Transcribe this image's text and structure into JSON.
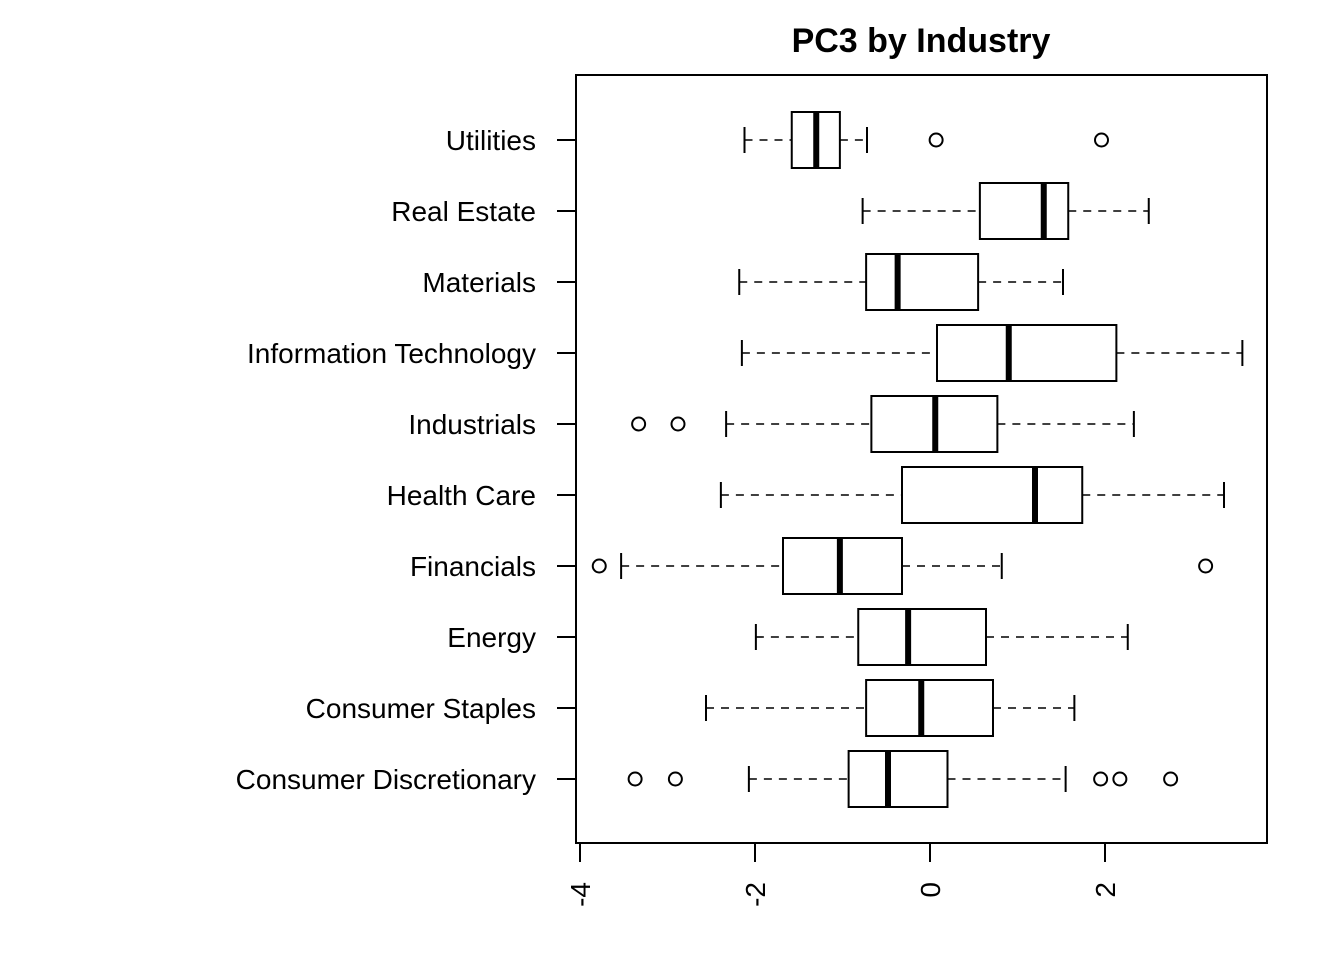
{
  "chart_data": {
    "type": "boxplot",
    "orientation": "horizontal",
    "title": "PC3 by Industry",
    "xlabel": "",
    "ylabel": "",
    "xlim": [
      -4.0,
      3.9
    ],
    "x_ticks": [
      -4,
      -2,
      0,
      2
    ],
    "x_tick_labels": [
      "-4",
      "-2",
      "0",
      "2"
    ],
    "grid": false,
    "categories": [
      "Consumer Discretionary",
      "Consumer Staples",
      "Energy",
      "Financials",
      "Health Care",
      "Industrials",
      "Information Technology",
      "Materials",
      "Real Estate",
      "Utilities"
    ],
    "boxes": [
      {
        "category": "Consumer Discretionary",
        "whisker_low": -2.07,
        "q1": -0.93,
        "median": -0.48,
        "q3": 0.2,
        "whisker_high": 1.55,
        "outliers": [
          -3.37,
          -2.91,
          1.95,
          2.17,
          2.75
        ]
      },
      {
        "category": "Consumer Staples",
        "whisker_low": -2.56,
        "q1": -0.73,
        "median": -0.1,
        "q3": 0.72,
        "whisker_high": 1.65,
        "outliers": []
      },
      {
        "category": "Energy",
        "whisker_low": -1.99,
        "q1": -0.82,
        "median": -0.25,
        "q3": 0.64,
        "whisker_high": 2.26,
        "outliers": []
      },
      {
        "category": "Financials",
        "whisker_low": -3.53,
        "q1": -1.68,
        "median": -1.03,
        "q3": -0.32,
        "whisker_high": 0.82,
        "outliers": [
          -3.78,
          3.15
        ]
      },
      {
        "category": "Health Care",
        "whisker_low": -2.39,
        "q1": -0.32,
        "median": 1.2,
        "q3": 1.74,
        "whisker_high": 3.36,
        "outliers": []
      },
      {
        "category": "Industrials",
        "whisker_low": -2.33,
        "q1": -0.67,
        "median": 0.06,
        "q3": 0.77,
        "whisker_high": 2.33,
        "outliers": [
          -3.33,
          -2.88
        ]
      },
      {
        "category": "Information Technology",
        "whisker_low": -2.15,
        "q1": 0.08,
        "median": 0.9,
        "q3": 2.13,
        "whisker_high": 3.57,
        "outliers": []
      },
      {
        "category": "Materials",
        "whisker_low": -2.18,
        "q1": -0.73,
        "median": -0.37,
        "q3": 0.55,
        "whisker_high": 1.52,
        "outliers": []
      },
      {
        "category": "Real Estate",
        "whisker_low": -0.77,
        "q1": 0.57,
        "median": 1.3,
        "q3": 1.58,
        "whisker_high": 2.5,
        "outliers": []
      },
      {
        "category": "Utilities",
        "whisker_low": -2.12,
        "q1": -1.58,
        "median": -1.3,
        "q3": -1.03,
        "whisker_high": -0.72,
        "outliers": [
          0.07,
          1.96
        ]
      }
    ]
  }
}
